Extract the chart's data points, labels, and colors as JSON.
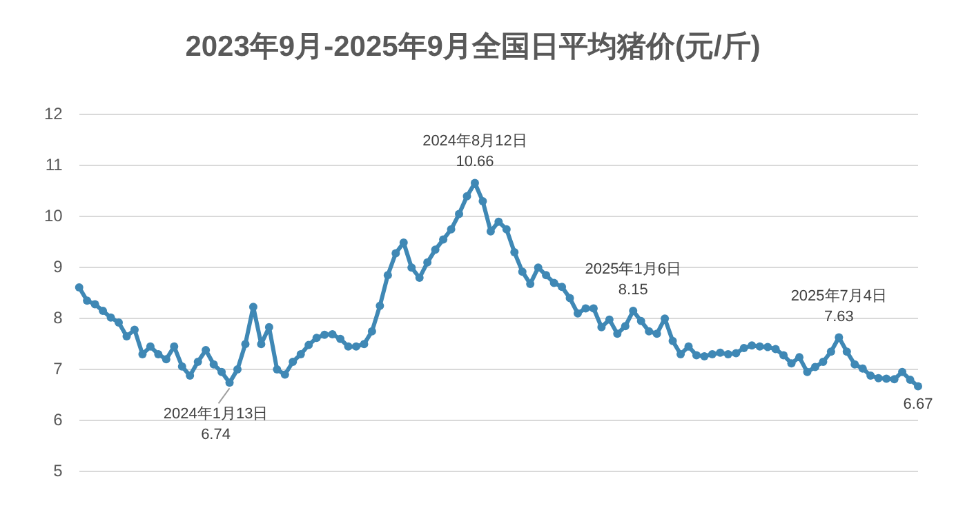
{
  "chart_data": {
    "type": "line",
    "title": "2023年9月-2025年9月全国日平均猪价(元/斤)",
    "categories": [
      null,
      null,
      null,
      null,
      null,
      null,
      null,
      null,
      null,
      null,
      null,
      null,
      null,
      null,
      null,
      null,
      null,
      null,
      null,
      null,
      null,
      null,
      null,
      null,
      null,
      null,
      null,
      null,
      null,
      null,
      null,
      null,
      null,
      null,
      null,
      null,
      null,
      null,
      null,
      null,
      null,
      null,
      null,
      null,
      null,
      null,
      null,
      null,
      null,
      null,
      null,
      null,
      null,
      null,
      null,
      null,
      null,
      null,
      null,
      null,
      null,
      null,
      null,
      null,
      null,
      null,
      null,
      null,
      null,
      null,
      null,
      null,
      null,
      null,
      null,
      null,
      null,
      null,
      null,
      null,
      null,
      null,
      null,
      null,
      null,
      null,
      null,
      null,
      null,
      null,
      null,
      null,
      null,
      null,
      null,
      null,
      null,
      null,
      null,
      null,
      null,
      null,
      null,
      null,
      null,
      null,
      null
    ],
    "series": [
      {
        "color": "#3f88b5",
        "values": [
          8.61,
          8.35,
          8.28,
          8.15,
          8.02,
          7.92,
          7.65,
          7.78,
          7.3,
          7.45,
          7.3,
          7.2,
          7.45,
          7.06,
          6.88,
          7.15,
          7.38,
          7.1,
          6.95,
          6.74,
          7.0,
          7.5,
          8.23,
          7.5,
          7.83,
          7.0,
          6.9,
          7.15,
          7.3,
          7.48,
          7.62,
          7.68,
          7.69,
          7.6,
          7.45,
          7.45,
          7.5,
          7.75,
          8.25,
          8.85,
          9.28,
          9.49,
          9.0,
          8.8,
          9.1,
          9.35,
          9.55,
          9.75,
          10.05,
          10.4,
          10.66,
          10.3,
          9.71,
          9.9,
          9.75,
          9.3,
          8.92,
          8.68,
          9.0,
          8.85,
          8.7,
          8.62,
          8.4,
          8.1,
          8.2,
          8.2,
          7.83,
          7.98,
          7.7,
          7.85,
          8.15,
          7.95,
          7.75,
          7.7,
          8.0,
          7.56,
          7.3,
          7.45,
          7.28,
          7.26,
          7.3,
          7.33,
          7.3,
          7.32,
          7.42,
          7.47,
          7.45,
          7.44,
          7.4,
          7.28,
          7.12,
          7.24,
          6.95,
          7.05,
          7.15,
          7.35,
          7.63,
          7.35,
          7.1,
          7.02,
          6.88,
          6.83,
          6.82,
          6.81,
          6.95,
          6.8,
          6.67
        ],
        "value_labels": [
          null,
          null,
          null,
          null,
          null,
          null,
          null,
          null,
          null,
          null,
          null,
          null,
          null,
          null,
          null,
          null,
          null,
          null,
          null,
          "6.74",
          null,
          null,
          null,
          null,
          null,
          null,
          null,
          null,
          null,
          null,
          null,
          null,
          null,
          null,
          null,
          null,
          null,
          null,
          null,
          null,
          null,
          null,
          null,
          null,
          null,
          null,
          null,
          null,
          null,
          null,
          "10.66",
          null,
          null,
          null,
          null,
          null,
          null,
          null,
          null,
          null,
          null,
          null,
          null,
          null,
          null,
          null,
          null,
          null,
          null,
          null,
          "8.15",
          null,
          null,
          null,
          null,
          null,
          null,
          null,
          null,
          null,
          null,
          null,
          null,
          null,
          null,
          null,
          null,
          null,
          null,
          null,
          null,
          null,
          null,
          null,
          null,
          null,
          "7.63",
          null,
          null,
          null,
          null,
          null,
          null,
          null,
          null,
          null,
          "6.67"
        ]
      }
    ],
    "ylim": [
      5,
      12
    ],
    "yticks": [
      5,
      6,
      7,
      8,
      9,
      10,
      11,
      12
    ],
    "tick_labels": "y",
    "grid": "y",
    "legend": false,
    "marker": "circle",
    "line_style": "solid",
    "annotations": [
      "2024年1月13日",
      "2024年8月12日",
      "2025年1月6日",
      "2025年7月4日"
    ]
  }
}
